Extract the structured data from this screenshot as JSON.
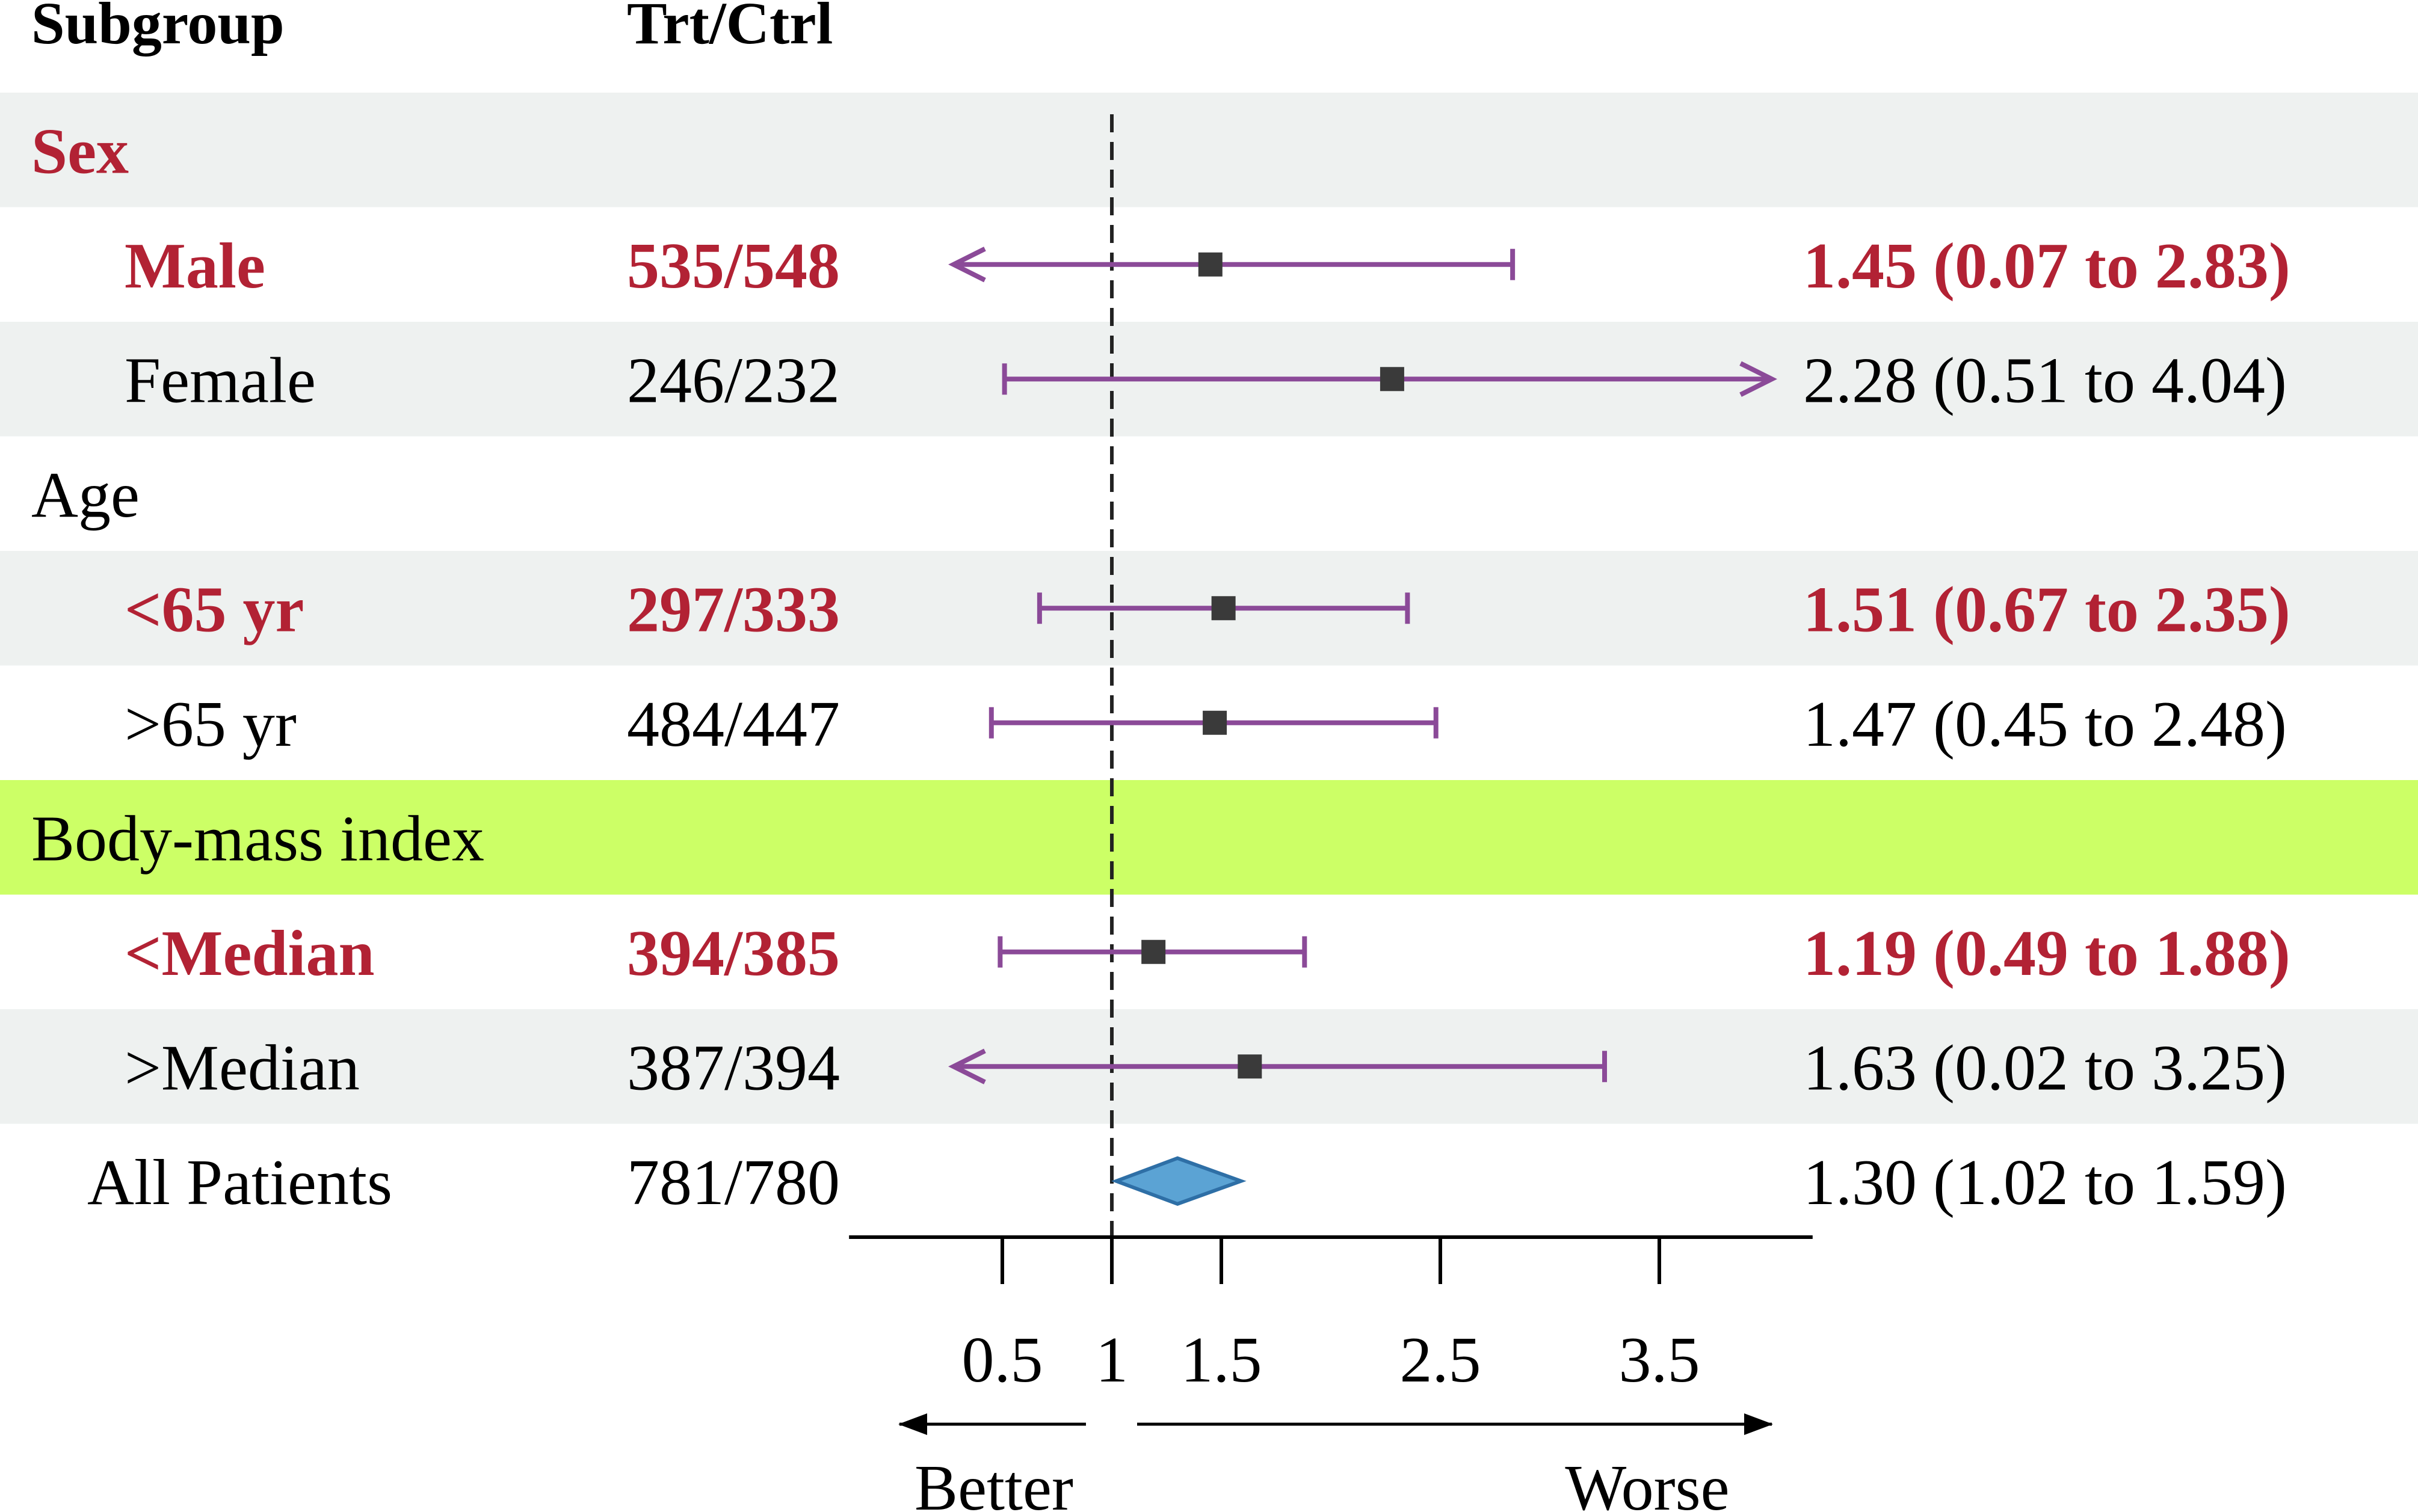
{
  "chart_data": {
    "type": "forest",
    "headers": {
      "subgroup": "Subgroup",
      "counts": "Trt/Ctrl"
    },
    "x_ticks": [
      0.5,
      1,
      1.5,
      2.5,
      3.5
    ],
    "x_tick_labels": [
      "0.5",
      "1",
      "1.5",
      "2.5",
      "3.5"
    ],
    "xlim": [
      -0.2,
      4.2
    ],
    "reference_line": 1,
    "direction_labels": {
      "left": "Better",
      "right": "Worse"
    },
    "rows": [
      {
        "kind": "group",
        "label": "Sex",
        "highlight": true,
        "background": "#eef1f0"
      },
      {
        "kind": "subgroup",
        "label": "Male",
        "counts": "535/548",
        "estimate": 1.45,
        "lower": 0.07,
        "upper": 2.83,
        "ci_text": "1.45 (0.07 to 2.83)",
        "highlight": true,
        "arrow_left": true,
        "arrow_right": false,
        "background": "#ffffff"
      },
      {
        "kind": "subgroup",
        "label": "Female",
        "counts": "246/232",
        "estimate": 2.28,
        "lower": 0.51,
        "upper": 4.04,
        "ci_text": "2.28 (0.51 to 4.04)",
        "highlight": false,
        "arrow_left": false,
        "arrow_right": true,
        "background": "#eef1f0"
      },
      {
        "kind": "group",
        "label": "Age",
        "highlight": false,
        "background": "#ffffff"
      },
      {
        "kind": "subgroup",
        "label": "<65 yr",
        "counts": "297/333",
        "estimate": 1.51,
        "lower": 0.67,
        "upper": 2.35,
        "ci_text": "1.51 (0.67 to 2.35)",
        "highlight": true,
        "arrow_left": false,
        "arrow_right": false,
        "background": "#eef1f0"
      },
      {
        "kind": "subgroup",
        "label": ">65 yr",
        "counts": "484/447",
        "estimate": 1.47,
        "lower": 0.45,
        "upper": 2.48,
        "ci_text": "1.47 (0.45 to 2.48)",
        "highlight": false,
        "arrow_left": false,
        "arrow_right": false,
        "background": "#ffffff"
      },
      {
        "kind": "group",
        "label": "Body-mass index",
        "highlight": false,
        "background": "#ccff66"
      },
      {
        "kind": "subgroup",
        "label": "<Median",
        "counts": "394/385",
        "estimate": 1.19,
        "lower": 0.49,
        "upper": 1.88,
        "ci_text": "1.19 (0.49 to 1.88)",
        "highlight": true,
        "arrow_left": false,
        "arrow_right": false,
        "background": "#ffffff"
      },
      {
        "kind": "subgroup",
        "label": ">Median",
        "counts": "387/394",
        "estimate": 1.63,
        "lower": 0.02,
        "upper": 3.25,
        "ci_text": "1.63 (0.02 to 3.25)",
        "highlight": false,
        "arrow_left": true,
        "arrow_right": false,
        "background": "#eef1f0"
      },
      {
        "kind": "overall",
        "label": "All Patients",
        "counts": "781/780",
        "estimate": 1.3,
        "lower": 1.02,
        "upper": 1.59,
        "ci_text": "1.30 (1.02 to 1.59)",
        "highlight": false,
        "background": "#ffffff"
      }
    ],
    "colors": {
      "highlight_text": "#b22234",
      "ci_line": "#8b4a98",
      "point": "#3a3a3a",
      "diamond_fill": "#5ba3d4",
      "diamond_stroke": "#2e6fa6",
      "group_band_light": "#eef1f0",
      "group_band_green": "#ccff66"
    }
  }
}
